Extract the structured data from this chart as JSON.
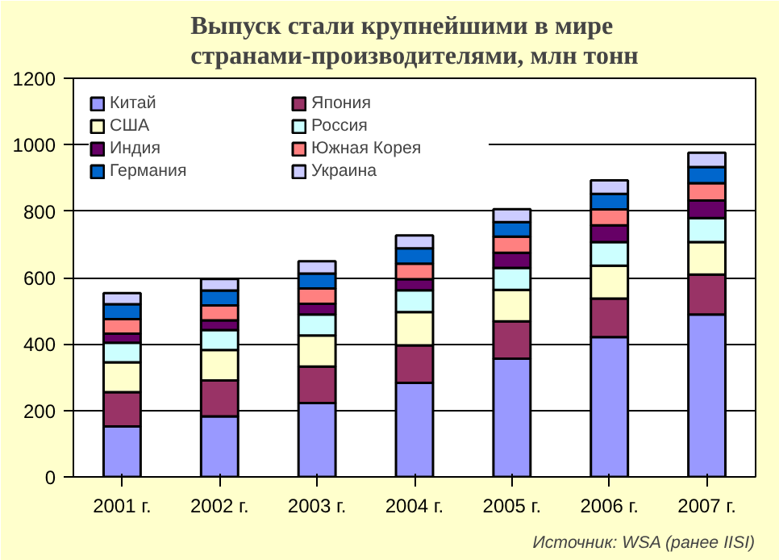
{
  "chart_data": {
    "type": "bar",
    "stacked": true,
    "title": "Выпуск стали крупнейшими в мире странами-производителями, млн тонн",
    "categories": [
      "2001 г.",
      "2002 г.",
      "2003 г.",
      "2004 г.",
      "2005 г.",
      "2006 г.",
      "2007 г."
    ],
    "series": [
      {
        "name": "Китай",
        "color": "#9999ff",
        "values": [
          152,
          182,
          222,
          283,
          356,
          421,
          489
        ]
      },
      {
        "name": "Япония",
        "color": "#993366",
        "values": [
          103,
          108,
          110,
          113,
          112,
          116,
          120
        ]
      },
      {
        "name": "США",
        "color": "#ffffcc",
        "values": [
          90,
          92,
          94,
          100,
          95,
          99,
          98
        ]
      },
      {
        "name": "Россия",
        "color": "#ccffff",
        "values": [
          59,
          60,
          63,
          66,
          66,
          71,
          72
        ]
      },
      {
        "name": "Индия",
        "color": "#660066",
        "values": [
          27,
          29,
          32,
          33,
          46,
          50,
          53
        ]
      },
      {
        "name": "Южная Корея",
        "color": "#ff8080",
        "values": [
          44,
          45,
          46,
          47,
          48,
          48,
          52
        ]
      },
      {
        "name": "Германия",
        "color": "#0066cc",
        "values": [
          45,
          45,
          45,
          46,
          44,
          47,
          49
        ]
      },
      {
        "name": "Украина",
        "color": "#ccccff",
        "values": [
          33,
          35,
          37,
          39,
          39,
          41,
          43
        ]
      }
    ],
    "ylim": [
      0,
      1200
    ],
    "yticks": [
      0,
      200,
      400,
      600,
      800,
      1000,
      1200
    ],
    "grid": "y",
    "legend": "top left",
    "annotations": [
      "Источник: WSA (ранее IISI)"
    ]
  }
}
